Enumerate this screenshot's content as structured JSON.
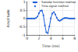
{
  "chart_data": {
    "type": "line",
    "x_label": "Time (ms)",
    "y_label": "Amplitude",
    "x": [
      0,
      0.25,
      0.5,
      0.75,
      1,
      1.25,
      1.5,
      1.75,
      2,
      2.25,
      2.5,
      2.75,
      3,
      3.25,
      3.5,
      3.75,
      4,
      4.25,
      4.5,
      4.75,
      5,
      5.25,
      5.5,
      5.75,
      6,
      6.25,
      6.5,
      6.75,
      7,
      7.25,
      7.5,
      7.75,
      8
    ],
    "series": [
      {
        "name": "Transfer function method",
        "color": "#1f5fd6",
        "marker": "none",
        "line_style": "solid",
        "values": [
          0,
          0,
          0,
          0,
          0,
          0,
          0.02,
          0.1,
          0.3,
          0.48,
          0.5,
          0.2,
          -0.4,
          -0.85,
          -0.9,
          -0.5,
          0,
          0.3,
          0.4,
          0.25,
          0.05,
          -0.1,
          -0.15,
          -0.1,
          -0.03,
          0.02,
          0.04,
          0.03,
          0.01,
          0,
          0,
          0,
          0
        ]
      },
      {
        "name": "Time-signal method",
        "color": "#1f5fd6",
        "marker": "circle",
        "line_style": "none",
        "values": [
          0,
          0,
          0,
          0,
          0,
          0,
          0.03,
          0.12,
          0.32,
          0.47,
          0.48,
          0.18,
          -0.42,
          -0.84,
          -0.88,
          -0.48,
          0.02,
          0.3,
          0.38,
          0.24,
          0.04,
          -0.1,
          -0.14,
          -0.09,
          -0.03,
          0.02,
          0.03,
          0.02,
          0.01,
          0,
          0,
          0,
          0
        ]
      }
    ],
    "xlim": [
      0,
      8
    ],
    "xticks": [
      0,
      2,
      4,
      6,
      8
    ],
    "ylim": [
      -1,
      1
    ],
    "yticks": [
      -1,
      -0.5,
      0,
      0.5,
      1
    ],
    "grid": true,
    "legend": "upper right"
  }
}
